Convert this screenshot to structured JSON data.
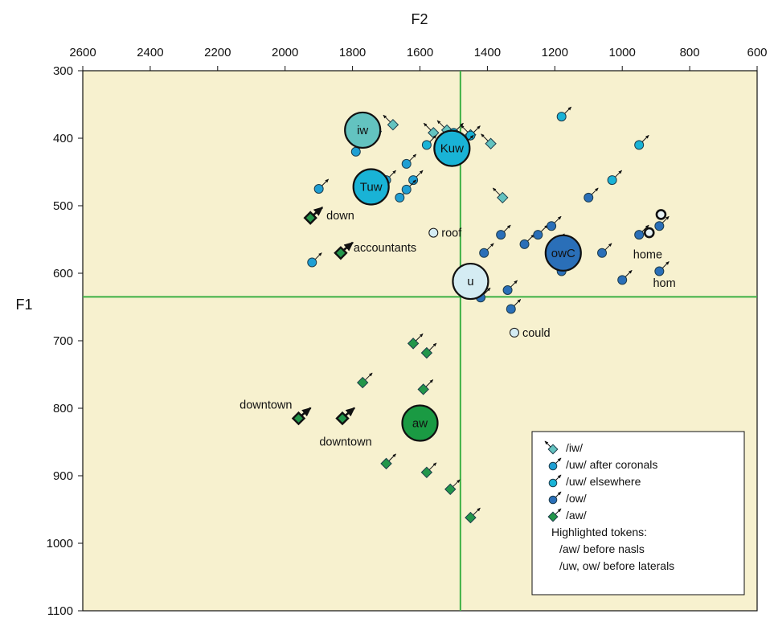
{
  "chart_data": {
    "type": "scatter",
    "xlabel": "F2",
    "ylabel": "F1",
    "x_reversed": true,
    "y_reversed": true,
    "xlim": [
      2600,
      600
    ],
    "ylim": [
      300,
      1100
    ],
    "xticks": [
      2600,
      2400,
      2200,
      2000,
      1800,
      1600,
      1400,
      1200,
      1000,
      800,
      600
    ],
    "yticks": [
      300,
      400,
      500,
      600,
      700,
      800,
      900,
      1000,
      1100
    ],
    "reference_lines": {
      "x": 1480,
      "y": 635,
      "color": "#3cb043"
    },
    "colors": {
      "iw": "#63c3c0",
      "uw_cor": "#1f9fd3",
      "uw_else": "#19b3d6",
      "ow": "#2a6fb8",
      "aw": "#22964a",
      "u": "#d4ecf3",
      "aw_mean": "#1a9a43",
      "background": "#f7f1cf"
    },
    "series": [
      {
        "name": "/iw/",
        "marker": "diamond",
        "arrow": "nw",
        "points": [
          [
            1730,
            390
          ],
          [
            1680,
            380
          ],
          [
            1560,
            392
          ],
          [
            1450,
            395
          ],
          [
            1390,
            408
          ],
          [
            1355,
            488
          ],
          [
            1520,
            388
          ]
        ]
      },
      {
        "name": "/uw/ after coronals",
        "marker": "circle",
        "arrow": "ne",
        "points": [
          [
            1900,
            475
          ],
          [
            1790,
            420
          ],
          [
            1640,
            438
          ],
          [
            1620,
            462
          ],
          [
            1660,
            488
          ],
          [
            1920,
            584
          ],
          [
            1700,
            462
          ],
          [
            1640,
            476
          ]
        ]
      },
      {
        "name": "/uw/ elsewhere",
        "marker": "circle",
        "arrow": "ne",
        "points": [
          [
            1500,
            392
          ],
          [
            1450,
            396
          ],
          [
            1470,
            410
          ],
          [
            1580,
            410
          ],
          [
            1180,
            368
          ],
          [
            950,
            410
          ],
          [
            1030,
            462
          ]
        ]
      },
      {
        "name": "/ow/",
        "marker": "circle",
        "arrow": "ne",
        "points": [
          [
            1100,
            488
          ],
          [
            1360,
            543
          ],
          [
            1410,
            570
          ],
          [
            1290,
            557
          ],
          [
            1250,
            543
          ],
          [
            1210,
            530
          ],
          [
            1060,
            570
          ],
          [
            1180,
            597
          ],
          [
            950,
            543
          ],
          [
            890,
            530
          ],
          [
            1000,
            610
          ],
          [
            890,
            597
          ],
          [
            1340,
            625
          ],
          [
            1420,
            636
          ],
          [
            1330,
            653
          ],
          [
            1200,
            556
          ]
        ]
      },
      {
        "name": "/aw/",
        "marker": "diamond",
        "arrow": "ne",
        "points": [
          [
            1620,
            704
          ],
          [
            1580,
            718
          ],
          [
            1590,
            772
          ],
          [
            1770,
            762
          ],
          [
            1700,
            882
          ],
          [
            1580,
            895
          ],
          [
            1510,
            920
          ],
          [
            1450,
            962
          ]
        ]
      }
    ],
    "highlighted_tokens": {
      "aw_before_nasals": [
        {
          "label": "down",
          "x": 1925,
          "y": 518
        },
        {
          "label": "accountants",
          "x": 1835,
          "y": 570
        },
        {
          "label": "downtown",
          "x": 1960,
          "y": 815
        },
        {
          "label": "downtown",
          "x": 1830,
          "y": 815
        }
      ],
      "uw_ow_before_laterals": [
        {
          "label": "roof",
          "x": 1560,
          "y": 540
        },
        {
          "label": "could",
          "x": 1320,
          "y": 688
        },
        {
          "label": "home",
          "x": 920,
          "y": 540
        },
        {
          "label": "hom",
          "x": 885,
          "y": 513
        }
      ]
    },
    "means": [
      {
        "label": "iw",
        "x": 1770,
        "y": 388
      },
      {
        "label": "Kuw",
        "x": 1505,
        "y": 415
      },
      {
        "label": "Tuw",
        "x": 1745,
        "y": 472
      },
      {
        "label": "owC",
        "x": 1175,
        "y": 570
      },
      {
        "label": "u",
        "x": 1450,
        "y": 612
      },
      {
        "label": "aw",
        "x": 1600,
        "y": 822
      }
    ],
    "legend": {
      "position": "bottom-right",
      "entries": [
        "/iw/",
        "/uw/ after coronals",
        "/uw/ elsewhere",
        "/ow/",
        "/aw/"
      ],
      "notes": [
        "Highlighted tokens:",
        "/aw/ before nasls",
        "/uw, ow/ before laterals"
      ]
    }
  }
}
